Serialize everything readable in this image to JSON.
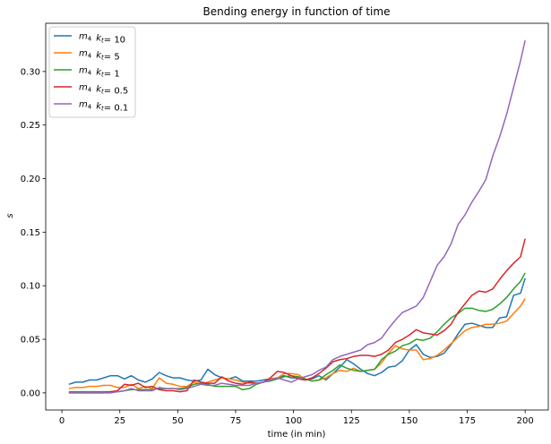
{
  "chart_data": {
    "type": "line",
    "title": "Bending energy in function of time",
    "xlabel": "time (in min)",
    "ylabel": "s",
    "xlim": [
      -7,
      210
    ],
    "ylim": [
      -0.016,
      0.345
    ],
    "xticks": [
      0,
      25,
      50,
      75,
      100,
      125,
      150,
      175,
      200
    ],
    "yticks": [
      0.0,
      0.05,
      0.1,
      0.15,
      0.2,
      0.25,
      0.3
    ],
    "ytick_labels": [
      "0.00",
      "0.05",
      "0.10",
      "0.15",
      "0.20",
      "0.25",
      "0.30"
    ],
    "grid": false,
    "legend_position": "top-left",
    "series": [
      {
        "name": "m4  kt = 10",
        "legend": {
          "m": "m",
          "msub": "4",
          "k": "k",
          "ksub": "t",
          "value": "= 10"
        },
        "color": "#1f77b4",
        "x": [
          3,
          6,
          9,
          12,
          15,
          18,
          21,
          24,
          27,
          30,
          33,
          36,
          39,
          42,
          45,
          48,
          51,
          54,
          57,
          60,
          63,
          66,
          69,
          72,
          75,
          78,
          81,
          84,
          87,
          90,
          93,
          96,
          99,
          102,
          105,
          108,
          111,
          114,
          117,
          120,
          123,
          126,
          129,
          132,
          135,
          138,
          141,
          144,
          147,
          150,
          153,
          156,
          159,
          162,
          165,
          168,
          171,
          174,
          177,
          180,
          183,
          186,
          189,
          192,
          195,
          198,
          200
        ],
        "y": [
          0.008,
          0.01,
          0.01,
          0.012,
          0.012,
          0.014,
          0.016,
          0.016,
          0.013,
          0.016,
          0.012,
          0.01,
          0.013,
          0.019,
          0.016,
          0.014,
          0.014,
          0.012,
          0.011,
          0.012,
          0.022,
          0.017,
          0.014,
          0.013,
          0.015,
          0.011,
          0.011,
          0.011,
          0.012,
          0.013,
          0.014,
          0.016,
          0.014,
          0.014,
          0.012,
          0.013,
          0.016,
          0.012,
          0.018,
          0.024,
          0.031,
          0.027,
          0.022,
          0.018,
          0.016,
          0.019,
          0.024,
          0.025,
          0.03,
          0.04,
          0.045,
          0.036,
          0.033,
          0.034,
          0.037,
          0.045,
          0.055,
          0.064,
          0.065,
          0.063,
          0.061,
          0.061,
          0.07,
          0.071,
          0.091,
          0.093,
          0.107
        ]
      },
      {
        "name": "m4  kt = 5",
        "legend": {
          "m": "m",
          "msub": "4",
          "k": "k",
          "ksub": "t",
          "value": "= 5"
        },
        "color": "#ff7f0e",
        "x": [
          3,
          6,
          9,
          12,
          15,
          18,
          21,
          24,
          27,
          30,
          33,
          36,
          39,
          42,
          45,
          48,
          51,
          54,
          57,
          60,
          63,
          66,
          69,
          72,
          75,
          78,
          81,
          84,
          87,
          90,
          93,
          96,
          99,
          102,
          105,
          108,
          111,
          114,
          117,
          120,
          123,
          126,
          129,
          132,
          135,
          138,
          141,
          144,
          147,
          150,
          153,
          156,
          159,
          162,
          165,
          168,
          171,
          174,
          177,
          180,
          183,
          186,
          189,
          192,
          195,
          198,
          200
        ],
        "y": [
          0.004,
          0.005,
          0.005,
          0.006,
          0.006,
          0.007,
          0.007,
          0.005,
          0.005,
          0.008,
          0.004,
          0.006,
          0.004,
          0.014,
          0.009,
          0.008,
          0.006,
          0.006,
          0.01,
          0.008,
          0.01,
          0.012,
          0.014,
          0.013,
          0.012,
          0.01,
          0.009,
          0.009,
          0.01,
          0.013,
          0.014,
          0.018,
          0.018,
          0.017,
          0.013,
          0.011,
          0.012,
          0.014,
          0.018,
          0.021,
          0.02,
          0.023,
          0.02,
          0.021,
          0.022,
          0.028,
          0.037,
          0.044,
          0.041,
          0.04,
          0.04,
          0.031,
          0.032,
          0.035,
          0.04,
          0.046,
          0.052,
          0.058,
          0.061,
          0.062,
          0.064,
          0.064,
          0.065,
          0.067,
          0.074,
          0.081,
          0.088
        ]
      },
      {
        "name": "m4  kt = 1",
        "legend": {
          "m": "m",
          "msub": "4",
          "k": "k",
          "ksub": "t",
          "value": "= 1"
        },
        "color": "#2ca02c",
        "x": [
          3,
          6,
          9,
          12,
          15,
          18,
          21,
          24,
          27,
          30,
          33,
          36,
          39,
          42,
          45,
          48,
          51,
          54,
          57,
          60,
          63,
          66,
          69,
          72,
          75,
          78,
          81,
          84,
          87,
          90,
          93,
          96,
          99,
          102,
          105,
          108,
          111,
          114,
          117,
          120,
          123,
          126,
          129,
          132,
          135,
          138,
          141,
          144,
          147,
          150,
          153,
          156,
          159,
          162,
          165,
          168,
          171,
          174,
          177,
          180,
          183,
          186,
          189,
          192,
          195,
          198,
          200
        ],
        "y": [
          0.001,
          0.001,
          0.001,
          0.001,
          0.001,
          0.001,
          0.001,
          0.001,
          0.002,
          0.003,
          0.003,
          0.003,
          0.003,
          0.004,
          0.004,
          0.004,
          0.004,
          0.005,
          0.008,
          0.009,
          0.008,
          0.006,
          0.006,
          0.006,
          0.006,
          0.003,
          0.004,
          0.008,
          0.01,
          0.011,
          0.013,
          0.015,
          0.016,
          0.015,
          0.013,
          0.011,
          0.012,
          0.017,
          0.021,
          0.026,
          0.023,
          0.021,
          0.02,
          0.021,
          0.022,
          0.031,
          0.036,
          0.039,
          0.044,
          0.046,
          0.05,
          0.049,
          0.051,
          0.057,
          0.064,
          0.07,
          0.074,
          0.079,
          0.079,
          0.077,
          0.076,
          0.078,
          0.083,
          0.089,
          0.097,
          0.104,
          0.112
        ]
      },
      {
        "name": "m4  kt = 0.5",
        "legend": {
          "m": "m",
          "msub": "4",
          "k": "k",
          "ksub": "t",
          "value": "= 0.5"
        },
        "color": "#d62728",
        "x": [
          3,
          6,
          9,
          12,
          15,
          18,
          21,
          24,
          27,
          30,
          33,
          36,
          39,
          42,
          45,
          48,
          51,
          54,
          57,
          60,
          63,
          66,
          69,
          72,
          75,
          78,
          81,
          84,
          87,
          90,
          93,
          96,
          99,
          102,
          105,
          108,
          111,
          114,
          117,
          120,
          123,
          126,
          129,
          132,
          135,
          138,
          141,
          144,
          147,
          150,
          153,
          156,
          159,
          162,
          165,
          168,
          171,
          174,
          177,
          180,
          183,
          186,
          189,
          192,
          195,
          198,
          200
        ],
        "y": [
          0.0,
          0.0,
          0.0,
          0.0,
          0.0,
          0.0,
          0.001,
          0.002,
          0.008,
          0.007,
          0.009,
          0.005,
          0.006,
          0.003,
          0.002,
          0.002,
          0.001,
          0.002,
          0.012,
          0.01,
          0.009,
          0.009,
          0.015,
          0.011,
          0.009,
          0.008,
          0.01,
          0.009,
          0.01,
          0.014,
          0.02,
          0.019,
          0.016,
          0.013,
          0.012,
          0.014,
          0.018,
          0.023,
          0.029,
          0.031,
          0.032,
          0.034,
          0.035,
          0.035,
          0.034,
          0.036,
          0.04,
          0.047,
          0.05,
          0.054,
          0.059,
          0.056,
          0.055,
          0.054,
          0.058,
          0.064,
          0.075,
          0.083,
          0.091,
          0.095,
          0.094,
          0.097,
          0.106,
          0.114,
          0.121,
          0.127,
          0.144
        ]
      },
      {
        "name": "m4  kt = 0.1",
        "legend": {
          "m": "m",
          "msub": "4",
          "k": "k",
          "ksub": "t",
          "value": "= 0.1"
        },
        "color": "#9467bd",
        "x": [
          3,
          6,
          9,
          12,
          15,
          18,
          21,
          24,
          27,
          30,
          33,
          36,
          39,
          42,
          45,
          48,
          51,
          54,
          57,
          60,
          63,
          66,
          69,
          72,
          75,
          78,
          81,
          84,
          87,
          90,
          93,
          96,
          99,
          102,
          105,
          108,
          111,
          114,
          117,
          120,
          123,
          126,
          129,
          132,
          135,
          138,
          141,
          144,
          147,
          150,
          153,
          156,
          159,
          162,
          165,
          168,
          171,
          174,
          177,
          180,
          183,
          186,
          189,
          192,
          195,
          198,
          200
        ],
        "y": [
          0.0,
          0.0,
          0.0,
          0.0,
          0.0,
          0.0,
          0.0,
          0.001,
          0.002,
          0.004,
          0.002,
          0.002,
          0.002,
          0.005,
          0.004,
          0.004,
          0.003,
          0.004,
          0.006,
          0.008,
          0.007,
          0.007,
          0.009,
          0.008,
          0.007,
          0.007,
          0.007,
          0.009,
          0.01,
          0.012,
          0.014,
          0.012,
          0.01,
          0.013,
          0.015,
          0.017,
          0.021,
          0.024,
          0.031,
          0.034,
          0.036,
          0.038,
          0.04,
          0.045,
          0.047,
          0.051,
          0.06,
          0.068,
          0.075,
          0.078,
          0.081,
          0.089,
          0.104,
          0.119,
          0.127,
          0.139,
          0.157,
          0.166,
          0.178,
          0.188,
          0.199,
          0.221,
          0.239,
          0.26,
          0.285,
          0.31,
          0.329
        ]
      }
    ]
  }
}
